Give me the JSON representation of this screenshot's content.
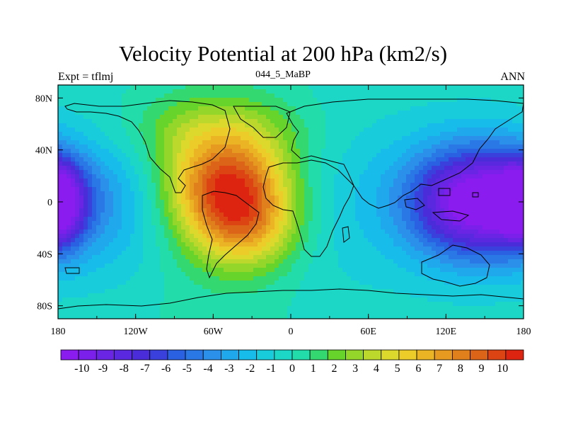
{
  "title": "Velocity Potential at 200 hPa (km2/s)",
  "left_string": "Expt = tflmj",
  "center_string": "044_5_MaBP",
  "right_string": "ANN",
  "colors": {
    "palette": [
      "#8a1cf0",
      "#7a20ea",
      "#6a24e4",
      "#5a28de",
      "#4a2cd8",
      "#3a40dc",
      "#2a60e2",
      "#2a78e6",
      "#2a90ea",
      "#20a8ec",
      "#18bcea",
      "#18ccdc",
      "#1cd6c6",
      "#22dcaa",
      "#34d870",
      "#66d42a",
      "#94d62a",
      "#bcd82c",
      "#dcd82c",
      "#eccc28",
      "#eab424",
      "#e69a20",
      "#e0801c",
      "#dc6418",
      "#dc4414",
      "#dc2410"
    ]
  },
  "chart_data": {
    "type": "heatmap",
    "title": "Velocity Potential at 200 hPa (km2/s)",
    "subtitle": "044_5_MaBP",
    "left_label": "Expt = tflmj",
    "right_label": "ANN",
    "x_ticks": [
      "180",
      "120W",
      "60W",
      "0",
      "60E",
      "120E",
      "180"
    ],
    "y_ticks": [
      "80N",
      "40N",
      "0",
      "40S",
      "80S"
    ],
    "xlim": [
      -180,
      180
    ],
    "ylim": [
      -90,
      90
    ],
    "colorbar_labels": [
      "-10",
      "-9",
      "-8",
      "-7",
      "-6",
      "-5",
      "-4",
      "-3",
      "-2",
      "-1",
      "0",
      "1",
      "2",
      "3",
      "4",
      "5",
      "6",
      "7",
      "8",
      "9",
      "10"
    ],
    "colorbar_range": [
      -10,
      10
    ],
    "features": [
      {
        "lon": -50,
        "lat": 15,
        "value": 10
      },
      {
        "lon": -40,
        "lat": -20,
        "value": 7
      },
      {
        "lon": 145,
        "lat": 0,
        "value": -10
      },
      {
        "lon": -180,
        "lat": 0,
        "value": -7
      }
    ]
  }
}
